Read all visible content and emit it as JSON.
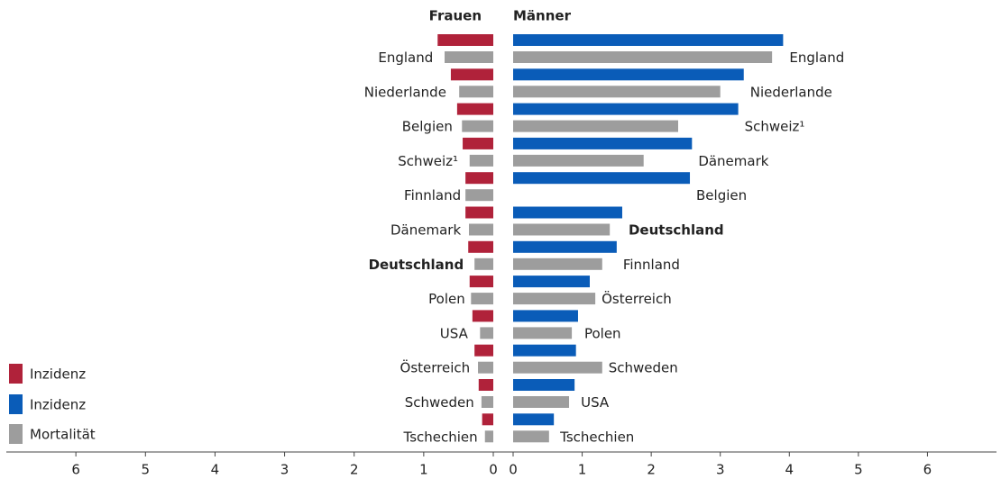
{
  "chart_data": [
    {
      "type": "bar",
      "orientation": "horizontal",
      "title": "Frauen",
      "categories": [
        "England",
        "Niederlande",
        "Belgien",
        "Schweiz¹",
        "Finnland",
        "Dänemark",
        "Deutschland",
        "Polen",
        "USA",
        "Österreich",
        "Schweden",
        "Tschechien"
      ],
      "highlight_index": 6,
      "series": [
        {
          "name": "Inzidenz",
          "color": "#b0223a",
          "values": [
            0.8,
            0.61,
            0.52,
            0.44,
            0.4,
            0.4,
            0.36,
            0.34,
            0.3,
            0.27,
            0.21,
            0.16
          ]
        },
        {
          "name": "Mortalität",
          "color": "#9d9d9d",
          "values": [
            0.7,
            0.49,
            0.45,
            0.34,
            0.4,
            0.35,
            0.27,
            0.32,
            0.19,
            0.22,
            0.17,
            0.12
          ]
        }
      ],
      "xlim": [
        0,
        7
      ],
      "xticks": [
        0,
        1,
        2,
        3,
        4,
        5,
        6
      ]
    },
    {
      "type": "bar",
      "orientation": "horizontal",
      "title": "Männer",
      "categories": [
        "England",
        "Niederlande",
        "Schweiz¹",
        "Dänemark",
        "Belgien",
        "Deutschland",
        "Finnland",
        "Österreich",
        "Polen",
        "Schweden",
        "USA",
        "Tschechien"
      ],
      "highlight_index": 5,
      "series": [
        {
          "name": "Inzidenz",
          "color": "#0a5cb8",
          "values": [
            3.91,
            3.34,
            3.26,
            2.59,
            2.56,
            1.58,
            1.5,
            1.11,
            0.94,
            0.91,
            0.89,
            0.59
          ]
        },
        {
          "color": "#9d9d9d",
          "values": [
            3.75,
            3.0,
            2.39,
            1.89,
            null,
            1.4,
            1.29,
            1.19,
            0.85,
            1.29,
            0.81,
            0.52
          ]
        }
      ],
      "xlim": [
        0,
        7
      ],
      "xticks": [
        0,
        1,
        2,
        3,
        4,
        5,
        6
      ]
    }
  ]
}
